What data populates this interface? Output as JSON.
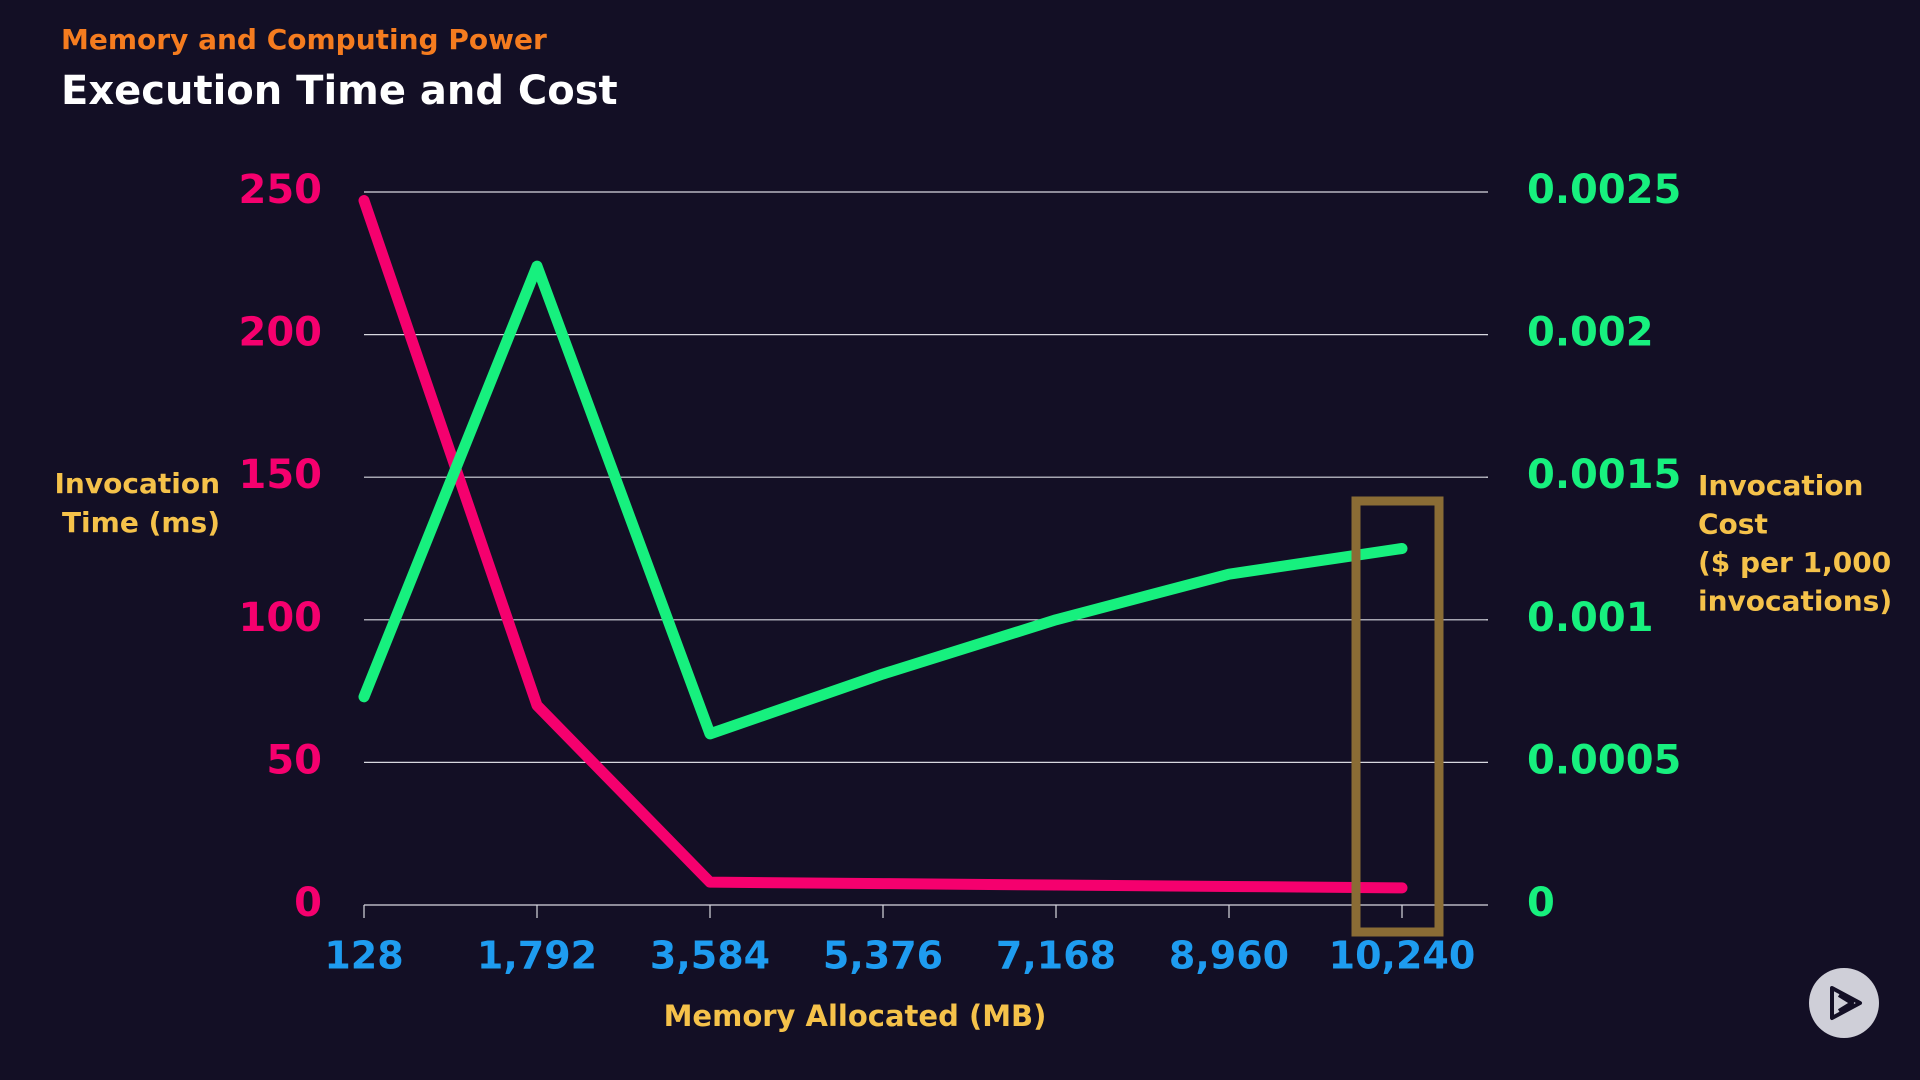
{
  "chart_data": {
    "type": "line",
    "header": "Memory and Computing Power",
    "title": "Execution Time and Cost",
    "xlabel": "Memory Allocated (MB)",
    "ylabel": [
      "Invocation",
      "Time (ms)"
    ],
    "y2label": [
      "Invocation",
      "Cost",
      "($ per 1,000",
      "invocations)"
    ],
    "categories": [
      "128",
      "1,792",
      "3,584",
      "5,376",
      "7,168",
      "8,960",
      "10,240"
    ],
    "ylim": [
      0,
      250
    ],
    "yticks": [
      0,
      50,
      100,
      150,
      200,
      250
    ],
    "y2lim": [
      0,
      0.0025
    ],
    "y2ticks": [
      0,
      0.0005,
      0.001,
      0.0015,
      0.002,
      0.0025
    ],
    "grid": true,
    "series": [
      {
        "name": "Invocation Time (ms)",
        "color": "#f5006e",
        "values": [
          247,
          70,
          8,
          7.5,
          7,
          6.5,
          6
        ]
      },
      {
        "name": "Invocation Cost",
        "color": "#17f07e",
        "axis": "y2",
        "values": [
          0.00073,
          0.00224,
          0.0006,
          0.00081,
          0.001,
          0.00116,
          0.00125
        ]
      }
    ]
  }
}
